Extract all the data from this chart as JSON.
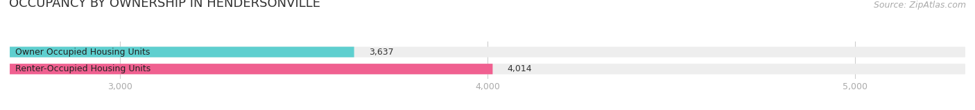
{
  "title": "OCCUPANCY BY OWNERSHIP IN HENDERSONVILLE",
  "source": "Source: ZipAtlas.com",
  "categories": [
    "Renter-Occupied Housing Units",
    "Owner Occupied Housing Units"
  ],
  "values": [
    4014,
    3637
  ],
  "bar_colors": [
    "#f06090",
    "#5ecfcf"
  ],
  "bar_bg_color": "#eeeeee",
  "xlim": [
    2700,
    5300
  ],
  "xticks": [
    3000,
    4000,
    5000
  ],
  "title_fontsize": 13,
  "source_fontsize": 9,
  "label_fontsize": 9,
  "value_fontsize": 9,
  "bar_height": 0.62,
  "bg_color": "#ffffff",
  "text_color": "#333333",
  "tick_color": "#aaaaaa",
  "grid_color": "#cccccc"
}
